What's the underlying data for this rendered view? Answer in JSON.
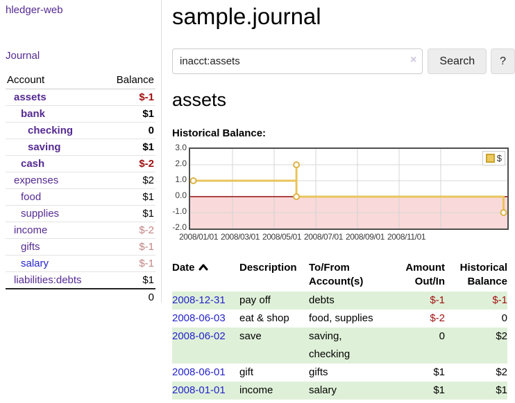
{
  "sidebar": {
    "brand": "hledger-web",
    "journal_link": "Journal",
    "accounts_table": {
      "headers": [
        "Account",
        "Balance"
      ],
      "rows": [
        {
          "name": "assets",
          "depth": 0,
          "name_class": "acct-bold",
          "balance": "$-1",
          "balance_class": "bal-neg-bold"
        },
        {
          "name": "bank",
          "depth": 1,
          "name_class": "acct-bold",
          "balance": "$1",
          "balance_class": "bal-pos-bold"
        },
        {
          "name": "checking",
          "depth": 2,
          "name_class": "acct-bold",
          "balance": "0",
          "balance_class": "bal-pos-bold"
        },
        {
          "name": "saving",
          "depth": 2,
          "name_class": "acct-bold",
          "balance": "$1",
          "balance_class": "bal-pos-bold"
        },
        {
          "name": "cash",
          "depth": 1,
          "name_class": "acct-bold",
          "balance": "$-2",
          "balance_class": "bal-neg-bold"
        },
        {
          "name": "expenses",
          "depth": 0,
          "name_class": "acct",
          "balance": "$2",
          "balance_class": "bal-pos"
        },
        {
          "name": "food",
          "depth": 1,
          "name_class": "acct",
          "balance": "$1",
          "balance_class": "bal-pos"
        },
        {
          "name": "supplies",
          "depth": 1,
          "name_class": "acct",
          "balance": "$1",
          "balance_class": "bal-pos"
        },
        {
          "name": "income",
          "depth": 0,
          "name_class": "acct",
          "balance": "$-2",
          "balance_class": "bal-neg-faded"
        },
        {
          "name": "gifts",
          "depth": 1,
          "name_class": "acct",
          "balance": "$-1",
          "balance_class": "bal-neg-faded"
        },
        {
          "name": "salary",
          "depth": 1,
          "name_class": "acct-blue",
          "balance": "$-1",
          "balance_class": "bal-neg-faded"
        },
        {
          "name": "liabilities:debts",
          "depth": 0,
          "name_class": "acct",
          "balance": "$1",
          "balance_class": "bal-pos"
        }
      ],
      "total": "0"
    }
  },
  "main": {
    "title": "sample.journal",
    "search": {
      "query": "inacct:assets",
      "clear_icon": "×",
      "button_label": "Search",
      "help_label": "?"
    },
    "account_heading": "assets",
    "chart_heading": "Historical Balance:",
    "transactions": {
      "headers": {
        "date": "Date",
        "description": "Description",
        "accounts": "To/From Account(s)",
        "amount": "Amount Out/In",
        "balance": "Historical Balance"
      },
      "sort": "ascending",
      "rows": [
        {
          "date": "2008-12-31",
          "description": "pay off",
          "accounts": "debts",
          "amount": "$-1",
          "amount_neg": true,
          "balance": "$-1",
          "balance_neg": true,
          "shaded": true
        },
        {
          "date": "2008-06-03",
          "description": "eat & shop",
          "accounts": "food, supplies",
          "amount": "$-2",
          "amount_neg": true,
          "balance": "0",
          "balance_neg": false,
          "shaded": false
        },
        {
          "date": "2008-06-02",
          "description": "save",
          "accounts": "saving, checking",
          "amount": "0",
          "amount_neg": false,
          "balance": "$2",
          "balance_neg": false,
          "shaded": true
        },
        {
          "date": "2008-06-01",
          "description": "gift",
          "accounts": "gifts",
          "amount": "$1",
          "amount_neg": false,
          "balance": "$2",
          "balance_neg": false,
          "shaded": false
        },
        {
          "date": "2008-01-01",
          "description": "income",
          "accounts": "salary",
          "amount": "$1",
          "amount_neg": false,
          "balance": "$1",
          "balance_neg": false,
          "shaded": true
        }
      ]
    }
  },
  "chart_data": {
    "type": "line",
    "title": "Historical Balance of assets",
    "step": true,
    "ylim": [
      -2,
      3
    ],
    "yticks": [
      "3.0",
      "2.0",
      "1.0",
      "0.0",
      "-1.0",
      "-2.0"
    ],
    "ytick_values": [
      3,
      2,
      1,
      0,
      -1,
      -2
    ],
    "xticks": [
      "2008/01/01",
      "2008/03/01",
      "2008/05/01",
      "2008/07/01",
      "2008/09/01",
      "2008/11/01"
    ],
    "grid": true,
    "legend": {
      "label": "$",
      "position": "top-right",
      "swatch_fill": "#eec95f",
      "swatch_border": "#c9a22c"
    },
    "negative_region_color": "#f9d9d9",
    "zero_line_color": "#8f0e0e",
    "series": [
      {
        "name": "$",
        "color": "#e9c45c",
        "marker_color": "#dcb345",
        "data": [
          [
            "2008-01-01",
            1
          ],
          [
            "2008-06-01",
            2
          ],
          [
            "2008-06-03",
            0
          ],
          [
            "2008-12-31",
            -1
          ]
        ],
        "path": [
          {
            "x": 0.004,
            "v": 1
          },
          {
            "x": 0.335,
            "v": 1
          },
          {
            "x": 0.335,
            "v": 2
          },
          {
            "x": 0.335,
            "v": 0
          },
          {
            "x": 0.988,
            "v": 0
          },
          {
            "x": 0.988,
            "v": -1
          }
        ],
        "markers": [
          {
            "x": 0.01,
            "v": 1
          },
          {
            "x": 0.335,
            "v": 2
          },
          {
            "x": 0.335,
            "v": 0
          },
          {
            "x": 0.988,
            "v": -1
          }
        ]
      }
    ]
  },
  "colors": {
    "link_purple": "#552a92",
    "link_blue": "#2323cc",
    "negative_red": "#a01010",
    "negative_faded_red": "#c28383",
    "row_highlight_green": "#dff0d8",
    "chart_line_gold": "#e9c45c",
    "chart_negative_pink": "#f9d9d9",
    "chart_zero_line_red": "#8f0e0e"
  }
}
